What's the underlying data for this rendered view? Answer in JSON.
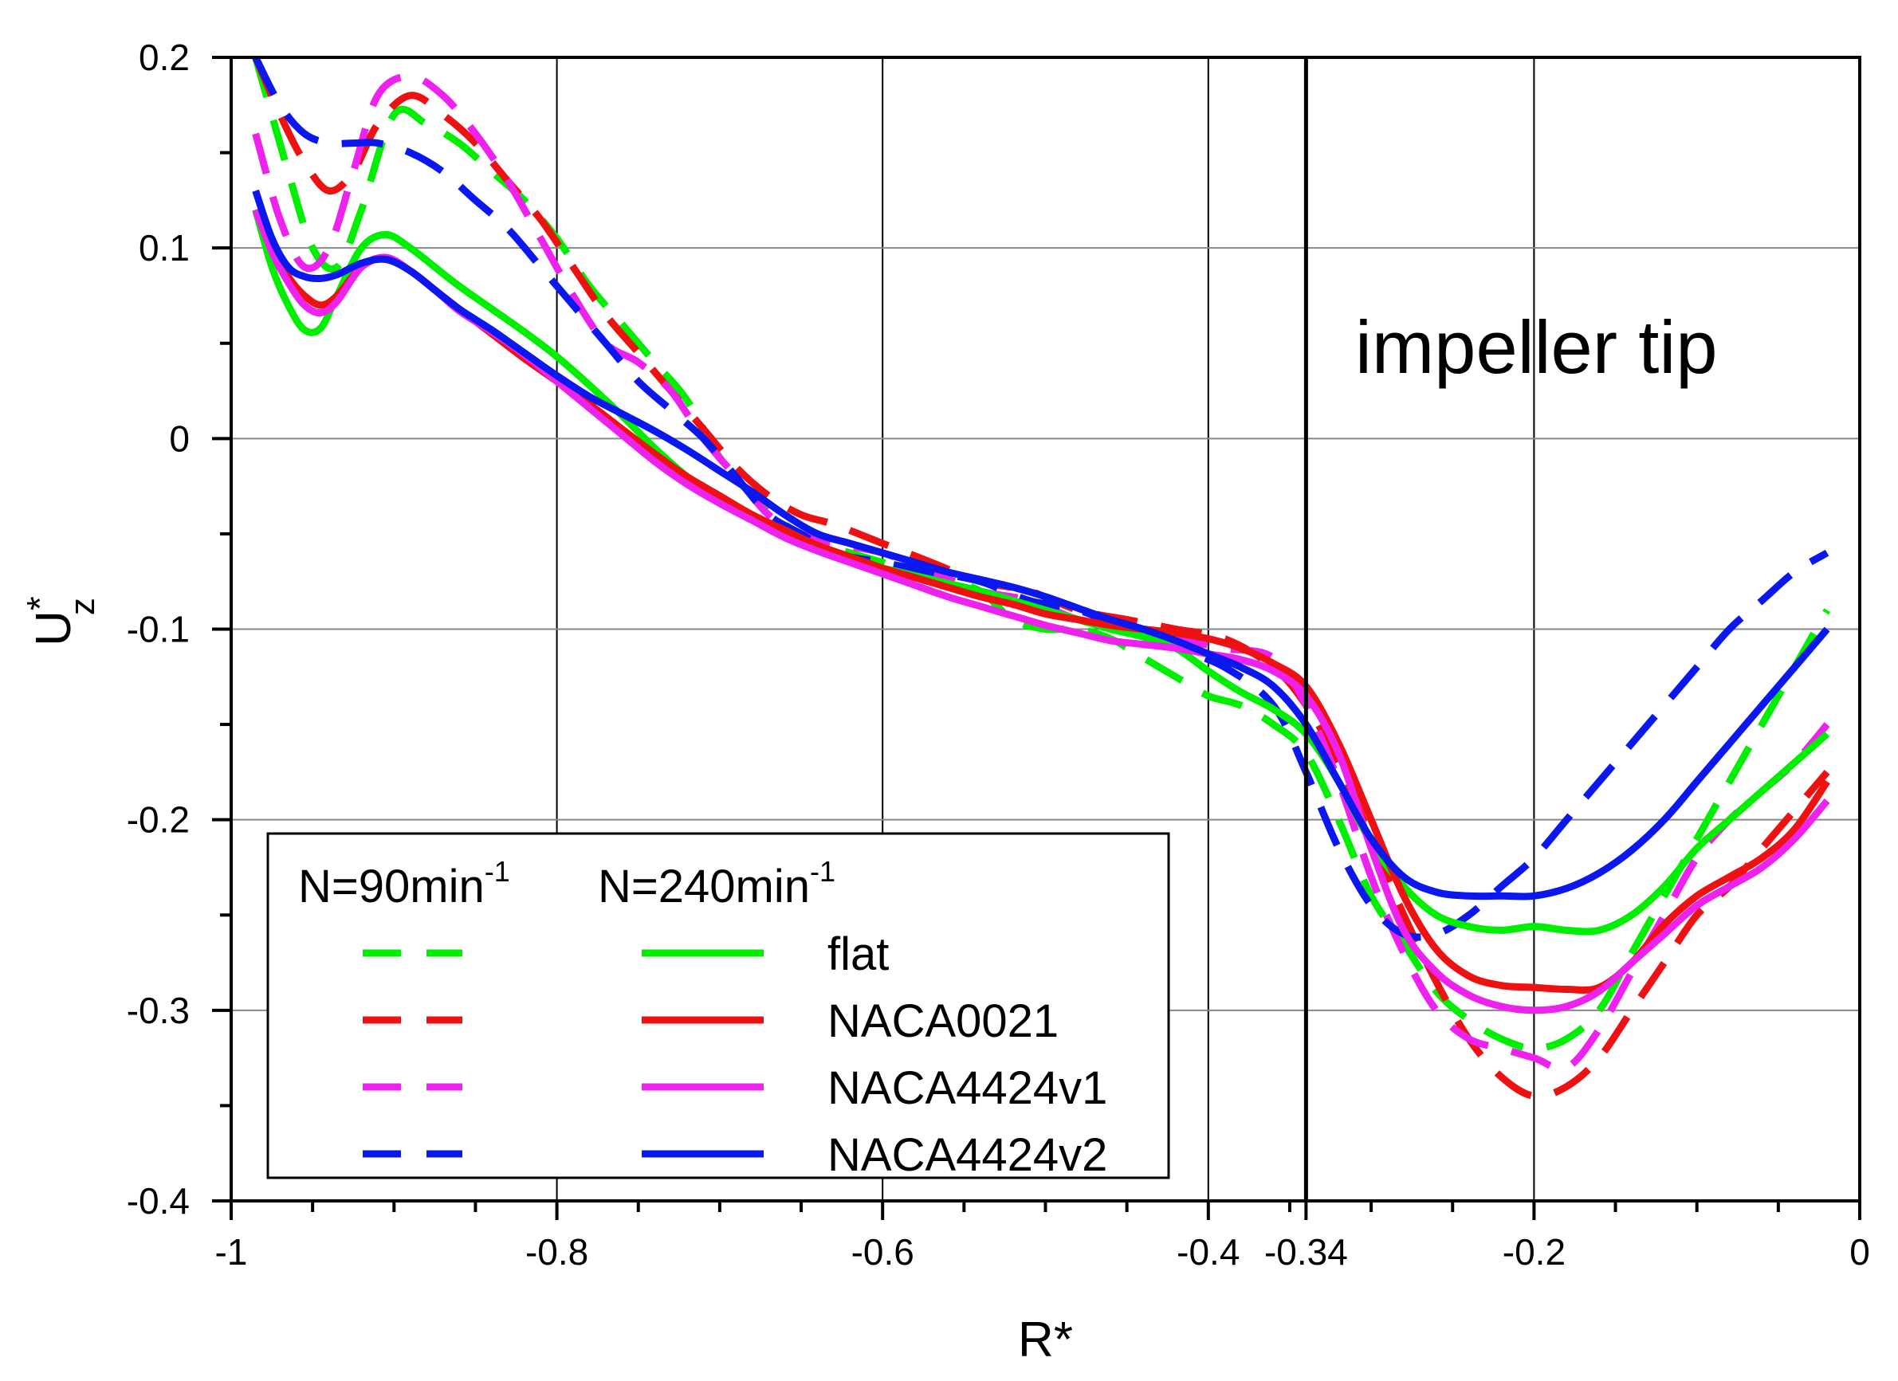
{
  "chart_data": {
    "type": "line",
    "title": "",
    "xlabel": "R*",
    "ylabel": {
      "main": "U",
      "sup": "*",
      "sub": "z"
    },
    "xlim": [
      -1,
      0
    ],
    "ylim": [
      -0.4,
      0.2
    ],
    "grid": true,
    "x_ticks": [
      {
        "value": -1,
        "label": "-1"
      },
      {
        "value": -0.8,
        "label": "-0.8"
      },
      {
        "value": -0.6,
        "label": "-0.6"
      },
      {
        "value": -0.4,
        "label": "-0.4"
      },
      {
        "value": -0.34,
        "label": "-0.34"
      },
      {
        "value": -0.2,
        "label": "-0.2"
      },
      {
        "value": 0,
        "label": "0"
      }
    ],
    "y_ticks": [
      {
        "value": 0.2,
        "label": "0.2"
      },
      {
        "value": 0.1,
        "label": "0.1"
      },
      {
        "value": 0,
        "label": "0"
      },
      {
        "value": -0.1,
        "label": "-0.1"
      },
      {
        "value": -0.2,
        "label": "-0.2"
      },
      {
        "value": -0.3,
        "label": "-0.3"
      },
      {
        "value": -0.4,
        "label": "-0.4"
      }
    ],
    "vertical_marker": {
      "x": -0.34
    },
    "annotation": "impeller tip",
    "legend": {
      "position": "bottom-left",
      "header_dashed": "N=90min",
      "header_solid": "N=240min",
      "header_exponent": "-1"
    },
    "series": [
      {
        "name": "flat",
        "N": "90",
        "style": "dashed",
        "color": "#00ee00",
        "x": [
          -0.985,
          -0.965,
          -0.95,
          -0.935,
          -0.92,
          -0.9,
          -0.88,
          -0.86,
          -0.84,
          -0.82,
          -0.8,
          -0.78,
          -0.76,
          -0.74,
          -0.72,
          -0.7,
          -0.68,
          -0.66,
          -0.64,
          -0.62,
          -0.6,
          -0.58,
          -0.56,
          -0.54,
          -0.52,
          -0.5,
          -0.48,
          -0.46,
          -0.44,
          -0.42,
          -0.4,
          -0.38,
          -0.36,
          -0.34,
          -0.32,
          -0.3,
          -0.28,
          -0.26,
          -0.24,
          -0.22,
          -0.2,
          -0.18,
          -0.16,
          -0.14,
          -0.12,
          -0.1,
          -0.08,
          -0.06,
          -0.04,
          -0.02
        ],
        "y": [
          0.2,
          0.14,
          0.1,
          0.09,
          0.12,
          0.17,
          0.165,
          0.155,
          0.14,
          0.125,
          0.105,
          0.08,
          0.06,
          0.04,
          0.02,
          -0.01,
          -0.03,
          -0.045,
          -0.055,
          -0.06,
          -0.065,
          -0.07,
          -0.075,
          -0.08,
          -0.095,
          -0.1,
          -0.1,
          -0.105,
          -0.115,
          -0.125,
          -0.135,
          -0.14,
          -0.15,
          -0.165,
          -0.2,
          -0.24,
          -0.265,
          -0.29,
          -0.305,
          -0.315,
          -0.32,
          -0.315,
          -0.3,
          -0.27,
          -0.24,
          -0.21,
          -0.18,
          -0.15,
          -0.12,
          -0.09
        ]
      },
      {
        "name": "NACA0021",
        "N": "90",
        "style": "dashed",
        "color": "#ee1111",
        "x": [
          -0.985,
          -0.97,
          -0.955,
          -0.94,
          -0.925,
          -0.91,
          -0.89,
          -0.87,
          -0.85,
          -0.83,
          -0.81,
          -0.79,
          -0.77,
          -0.75,
          -0.73,
          -0.71,
          -0.69,
          -0.67,
          -0.65,
          -0.63,
          -0.6,
          -0.57,
          -0.54,
          -0.51,
          -0.48,
          -0.45,
          -0.42,
          -0.39,
          -0.36,
          -0.34,
          -0.32,
          -0.3,
          -0.28,
          -0.26,
          -0.24,
          -0.22,
          -0.2,
          -0.18,
          -0.16,
          -0.14,
          -0.12,
          -0.1,
          -0.08,
          -0.06,
          -0.04,
          -0.02
        ],
        "y": [
          0.2,
          0.17,
          0.145,
          0.13,
          0.14,
          0.165,
          0.18,
          0.17,
          0.155,
          0.135,
          0.115,
          0.09,
          0.065,
          0.045,
          0.025,
          0.005,
          -0.015,
          -0.03,
          -0.04,
          -0.045,
          -0.055,
          -0.065,
          -0.075,
          -0.08,
          -0.09,
          -0.095,
          -0.1,
          -0.105,
          -0.12,
          -0.14,
          -0.17,
          -0.21,
          -0.25,
          -0.285,
          -0.315,
          -0.335,
          -0.345,
          -0.34,
          -0.325,
          -0.3,
          -0.275,
          -0.25,
          -0.235,
          -0.215,
          -0.195,
          -0.175
        ]
      },
      {
        "name": "NACA4424v1",
        "N": "90",
        "style": "dashed",
        "color": "#ee22ee",
        "x": [
          -0.985,
          -0.97,
          -0.955,
          -0.94,
          -0.925,
          -0.91,
          -0.89,
          -0.87,
          -0.85,
          -0.83,
          -0.81,
          -0.79,
          -0.77,
          -0.75,
          -0.73,
          -0.71,
          -0.69,
          -0.67,
          -0.65,
          -0.63,
          -0.6,
          -0.57,
          -0.54,
          -0.51,
          -0.48,
          -0.45,
          -0.42,
          -0.39,
          -0.36,
          -0.34,
          -0.32,
          -0.3,
          -0.28,
          -0.26,
          -0.24,
          -0.22,
          -0.2,
          -0.18,
          -0.16,
          -0.14,
          -0.12,
          -0.1,
          -0.08,
          -0.06,
          -0.04,
          -0.02
        ],
        "y": [
          0.16,
          0.115,
          0.09,
          0.1,
          0.14,
          0.18,
          0.19,
          0.18,
          0.16,
          0.135,
          0.105,
          0.075,
          0.05,
          0.04,
          0.025,
          0.0,
          -0.02,
          -0.04,
          -0.05,
          -0.055,
          -0.06,
          -0.07,
          -0.08,
          -0.085,
          -0.095,
          -0.1,
          -0.105,
          -0.11,
          -0.115,
          -0.14,
          -0.18,
          -0.23,
          -0.27,
          -0.3,
          -0.315,
          -0.32,
          -0.325,
          -0.33,
          -0.31,
          -0.28,
          -0.25,
          -0.22,
          -0.2,
          -0.185,
          -0.17,
          -0.15
        ]
      },
      {
        "name": "NACA4424v2",
        "N": "90",
        "style": "dashed",
        "color": "#0a17ee",
        "x": [
          -0.985,
          -0.97,
          -0.955,
          -0.94,
          -0.925,
          -0.91,
          -0.89,
          -0.87,
          -0.85,
          -0.83,
          -0.81,
          -0.79,
          -0.77,
          -0.75,
          -0.73,
          -0.71,
          -0.69,
          -0.67,
          -0.65,
          -0.63,
          -0.6,
          -0.57,
          -0.54,
          -0.51,
          -0.48,
          -0.45,
          -0.42,
          -0.39,
          -0.36,
          -0.34,
          -0.32,
          -0.3,
          -0.28,
          -0.26,
          -0.24,
          -0.22,
          -0.2,
          -0.18,
          -0.16,
          -0.14,
          -0.12,
          -0.1,
          -0.08,
          -0.06,
          -0.04,
          -0.02
        ],
        "y": [
          0.2,
          0.175,
          0.16,
          0.155,
          0.155,
          0.155,
          0.15,
          0.14,
          0.125,
          0.11,
          0.09,
          0.07,
          0.05,
          0.03,
          0.015,
          0.0,
          -0.02,
          -0.04,
          -0.05,
          -0.06,
          -0.065,
          -0.07,
          -0.075,
          -0.085,
          -0.09,
          -0.1,
          -0.11,
          -0.12,
          -0.14,
          -0.175,
          -0.215,
          -0.245,
          -0.26,
          -0.26,
          -0.25,
          -0.235,
          -0.22,
          -0.2,
          -0.18,
          -0.16,
          -0.14,
          -0.12,
          -0.1,
          -0.085,
          -0.07,
          -0.06
        ]
      },
      {
        "name": "flat",
        "N": "240",
        "style": "solid",
        "color": "#00ee00",
        "x": [
          -0.985,
          -0.975,
          -0.965,
          -0.955,
          -0.945,
          -0.935,
          -0.92,
          -0.905,
          -0.89,
          -0.875,
          -0.86,
          -0.84,
          -0.82,
          -0.8,
          -0.78,
          -0.76,
          -0.74,
          -0.72,
          -0.7,
          -0.68,
          -0.66,
          -0.64,
          -0.62,
          -0.6,
          -0.58,
          -0.56,
          -0.54,
          -0.52,
          -0.5,
          -0.48,
          -0.46,
          -0.44,
          -0.42,
          -0.4,
          -0.38,
          -0.36,
          -0.34,
          -0.32,
          -0.3,
          -0.28,
          -0.26,
          -0.24,
          -0.22,
          -0.2,
          -0.18,
          -0.16,
          -0.14,
          -0.12,
          -0.1,
          -0.08,
          -0.06,
          -0.04,
          -0.02
        ],
        "y": [
          0.12,
          0.09,
          0.07,
          0.057,
          0.058,
          0.075,
          0.1,
          0.107,
          0.1,
          0.09,
          0.08,
          0.068,
          0.056,
          0.043,
          0.028,
          0.012,
          -0.005,
          -0.02,
          -0.032,
          -0.042,
          -0.05,
          -0.058,
          -0.064,
          -0.068,
          -0.072,
          -0.076,
          -0.08,
          -0.085,
          -0.09,
          -0.095,
          -0.1,
          -0.104,
          -0.11,
          -0.122,
          -0.133,
          -0.142,
          -0.155,
          -0.18,
          -0.212,
          -0.235,
          -0.25,
          -0.256,
          -0.258,
          -0.256,
          -0.258,
          -0.258,
          -0.25,
          -0.235,
          -0.215,
          -0.2,
          -0.185,
          -0.17,
          -0.155
        ]
      },
      {
        "name": "NACA0021",
        "N": "240",
        "style": "solid",
        "color": "#ee1111",
        "x": [
          -0.985,
          -0.975,
          -0.965,
          -0.955,
          -0.945,
          -0.935,
          -0.92,
          -0.905,
          -0.89,
          -0.875,
          -0.86,
          -0.84,
          -0.82,
          -0.8,
          -0.78,
          -0.76,
          -0.74,
          -0.72,
          -0.7,
          -0.68,
          -0.66,
          -0.64,
          -0.62,
          -0.6,
          -0.58,
          -0.56,
          -0.54,
          -0.52,
          -0.5,
          -0.48,
          -0.46,
          -0.44,
          -0.42,
          -0.4,
          -0.38,
          -0.36,
          -0.34,
          -0.32,
          -0.3,
          -0.28,
          -0.26,
          -0.24,
          -0.22,
          -0.2,
          -0.18,
          -0.16,
          -0.14,
          -0.12,
          -0.1,
          -0.08,
          -0.06,
          -0.04,
          -0.02
        ],
        "y": [
          0.12,
          0.1,
          0.085,
          0.075,
          0.07,
          0.075,
          0.09,
          0.095,
          0.088,
          0.078,
          0.068,
          0.055,
          0.042,
          0.03,
          0.018,
          0.005,
          -0.008,
          -0.02,
          -0.03,
          -0.04,
          -0.048,
          -0.056,
          -0.062,
          -0.068,
          -0.073,
          -0.078,
          -0.083,
          -0.087,
          -0.092,
          -0.095,
          -0.098,
          -0.1,
          -0.102,
          -0.105,
          -0.11,
          -0.118,
          -0.13,
          -0.16,
          -0.2,
          -0.24,
          -0.268,
          -0.282,
          -0.287,
          -0.288,
          -0.289,
          -0.288,
          -0.275,
          -0.255,
          -0.24,
          -0.23,
          -0.22,
          -0.205,
          -0.18
        ]
      },
      {
        "name": "NACA4424v1",
        "N": "240",
        "style": "solid",
        "color": "#ee22ee",
        "x": [
          -0.985,
          -0.975,
          -0.965,
          -0.955,
          -0.945,
          -0.935,
          -0.92,
          -0.905,
          -0.89,
          -0.875,
          -0.86,
          -0.84,
          -0.82,
          -0.8,
          -0.78,
          -0.76,
          -0.74,
          -0.72,
          -0.7,
          -0.68,
          -0.66,
          -0.64,
          -0.62,
          -0.6,
          -0.58,
          -0.56,
          -0.54,
          -0.52,
          -0.5,
          -0.48,
          -0.46,
          -0.44,
          -0.42,
          -0.4,
          -0.38,
          -0.36,
          -0.34,
          -0.32,
          -0.3,
          -0.28,
          -0.26,
          -0.24,
          -0.22,
          -0.2,
          -0.18,
          -0.16,
          -0.14,
          -0.12,
          -0.1,
          -0.08,
          -0.06,
          -0.04,
          -0.02
        ],
        "y": [
          0.12,
          0.098,
          0.082,
          0.07,
          0.066,
          0.072,
          0.09,
          0.095,
          0.088,
          0.078,
          0.067,
          0.056,
          0.044,
          0.03,
          0.016,
          0.002,
          -0.012,
          -0.024,
          -0.034,
          -0.043,
          -0.052,
          -0.059,
          -0.065,
          -0.071,
          -0.077,
          -0.083,
          -0.088,
          -0.093,
          -0.098,
          -0.102,
          -0.106,
          -0.108,
          -0.11,
          -0.113,
          -0.116,
          -0.122,
          -0.135,
          -0.165,
          -0.215,
          -0.258,
          -0.28,
          -0.292,
          -0.298,
          -0.3,
          -0.298,
          -0.29,
          -0.275,
          -0.26,
          -0.245,
          -0.235,
          -0.225,
          -0.21,
          -0.19
        ]
      },
      {
        "name": "NACA4424v2",
        "N": "240",
        "style": "solid",
        "color": "#0a17ee",
        "x": [
          -0.985,
          -0.975,
          -0.965,
          -0.955,
          -0.945,
          -0.935,
          -0.92,
          -0.905,
          -0.89,
          -0.875,
          -0.86,
          -0.84,
          -0.82,
          -0.8,
          -0.78,
          -0.76,
          -0.74,
          -0.72,
          -0.7,
          -0.68,
          -0.66,
          -0.64,
          -0.62,
          -0.6,
          -0.58,
          -0.56,
          -0.54,
          -0.52,
          -0.5,
          -0.48,
          -0.46,
          -0.44,
          -0.42,
          -0.4,
          -0.38,
          -0.36,
          -0.34,
          -0.32,
          -0.3,
          -0.28,
          -0.26,
          -0.24,
          -0.22,
          -0.2,
          -0.18,
          -0.16,
          -0.14,
          -0.12,
          -0.1,
          -0.08,
          -0.06,
          -0.04,
          -0.02
        ],
        "y": [
          0.13,
          0.105,
          0.09,
          0.085,
          0.084,
          0.086,
          0.092,
          0.094,
          0.088,
          0.078,
          0.068,
          0.057,
          0.045,
          0.033,
          0.022,
          0.013,
          0.004,
          -0.006,
          -0.017,
          -0.028,
          -0.04,
          -0.05,
          -0.055,
          -0.06,
          -0.065,
          -0.07,
          -0.074,
          -0.078,
          -0.083,
          -0.089,
          -0.095,
          -0.1,
          -0.106,
          -0.113,
          -0.12,
          -0.13,
          -0.15,
          -0.18,
          -0.21,
          -0.23,
          -0.238,
          -0.24,
          -0.24,
          -0.24,
          -0.236,
          -0.228,
          -0.216,
          -0.2,
          -0.18,
          -0.16,
          -0.14,
          -0.12,
          -0.1
        ]
      }
    ]
  }
}
